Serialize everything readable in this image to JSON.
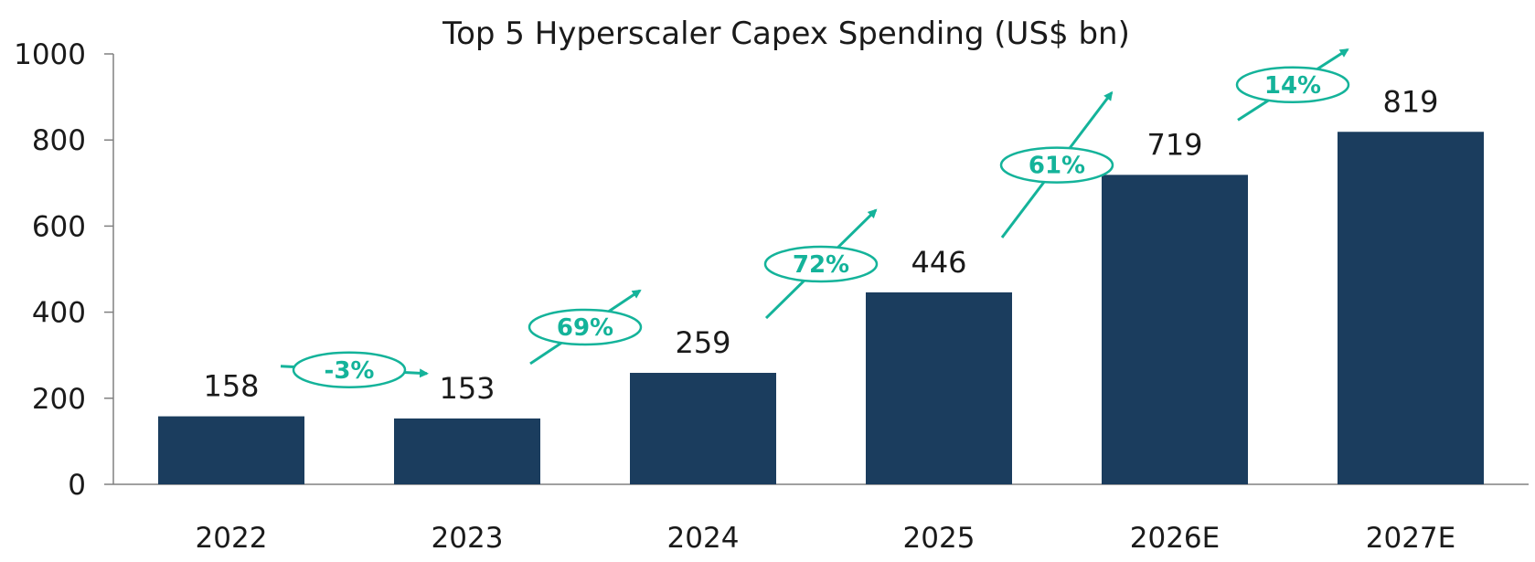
{
  "chart_data": {
    "type": "bar",
    "title": "Top 5 Hyperscaler Capex Spending (US$ bn)",
    "categories": [
      "2022",
      "2023",
      "2024",
      "2025",
      "2026E",
      "2027E"
    ],
    "values": [
      158,
      153,
      259,
      446,
      719,
      819
    ],
    "value_labels": [
      "158",
      "153",
      "259",
      "446",
      "719",
      "819"
    ],
    "ylim": [
      0,
      1000
    ],
    "yticks": [
      0,
      200,
      400,
      600,
      800,
      1000
    ],
    "ytick_labels": [
      "0",
      "200",
      "400",
      "600",
      "800",
      "1000"
    ],
    "grid": false,
    "legend": "none",
    "growth_annotations": [
      {
        "from": "2022",
        "to": "2023",
        "label": "-3%"
      },
      {
        "from": "2023",
        "to": "2024",
        "label": "69%"
      },
      {
        "from": "2024",
        "to": "2025",
        "label": "72%"
      },
      {
        "from": "2025",
        "to": "2026E",
        "label": "61%"
      },
      {
        "from": "2026E",
        "to": "2027E",
        "label": "14%"
      }
    ]
  },
  "colors": {
    "bar": "#1b3d5e",
    "accent": "#14b39a",
    "axis": "#808080",
    "text": "#1a1a1a"
  }
}
